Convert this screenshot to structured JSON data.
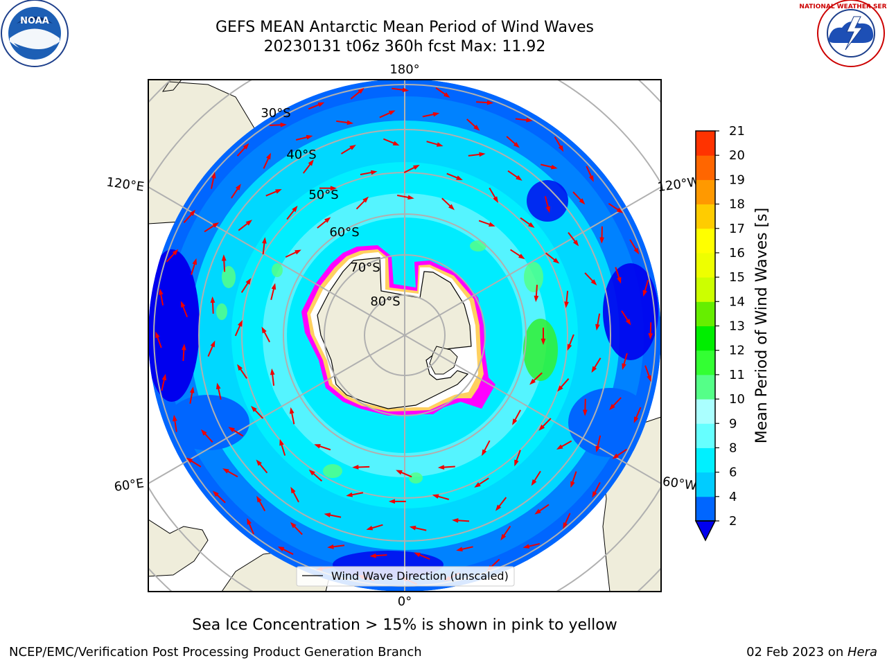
{
  "header": {
    "title_line1": "GEFS MEAN Antarctic Mean Period of Wind Waves",
    "title_line2": "20230131 t06z 360h fcst   Max: 11.92"
  },
  "logos": {
    "left": {
      "name": "NOAA",
      "ring_text": "NATIONAL OCEANIC AND ATMOSPHERIC ADMINISTRATION",
      "bottom_text": "U.S. DEPARTMENT OF COMMERCE"
    },
    "right": {
      "name": "NATIONAL WEATHER SERVICE"
    }
  },
  "map": {
    "longitude_labels": [
      "180°",
      "120°E",
      "120°W",
      "60°E",
      "60°W",
      "0°"
    ],
    "latitude_labels": [
      "30°S",
      "40°S",
      "50°S",
      "60°S",
      "70°S",
      "80°S"
    ],
    "legend": "Wind Wave Direction (unscaled)",
    "caption": "Sea Ice Concentration > 15% is shown in pink to yellow",
    "colors": {
      "land": "#efeddb",
      "antarctica": "#efeddb",
      "arrow": "#ee0000",
      "grid": "#b0b0b0",
      "sea_ice": [
        "#ff00ff",
        "#ff7fd0",
        "#ffd060",
        "#ffffff"
      ]
    }
  },
  "colorbar": {
    "label": "Mean Period of Wind Waves [s]",
    "tick_labels": [
      "2",
      "4",
      "6",
      "8",
      "9",
      "10",
      "11",
      "12",
      "13",
      "14",
      "15",
      "16",
      "17",
      "18",
      "19",
      "20",
      "21"
    ],
    "colors": [
      "#0066ff",
      "#00ccff",
      "#00f0ff",
      "#66ffff",
      "#aaffff",
      "#55ff88",
      "#33ff33",
      "#00ee00",
      "#66ee00",
      "#ccff00",
      "#eeff00",
      "#ffff00",
      "#ffcc00",
      "#ff9900",
      "#ff6600",
      "#ff3300",
      "#ff0000"
    ],
    "under_color": "#0000ee"
  },
  "footer": {
    "left": "NCEP/EMC/Verification Post Processing Product Generation Branch",
    "right_date": "02 Feb 2023 on ",
    "right_machine": "Hera"
  }
}
